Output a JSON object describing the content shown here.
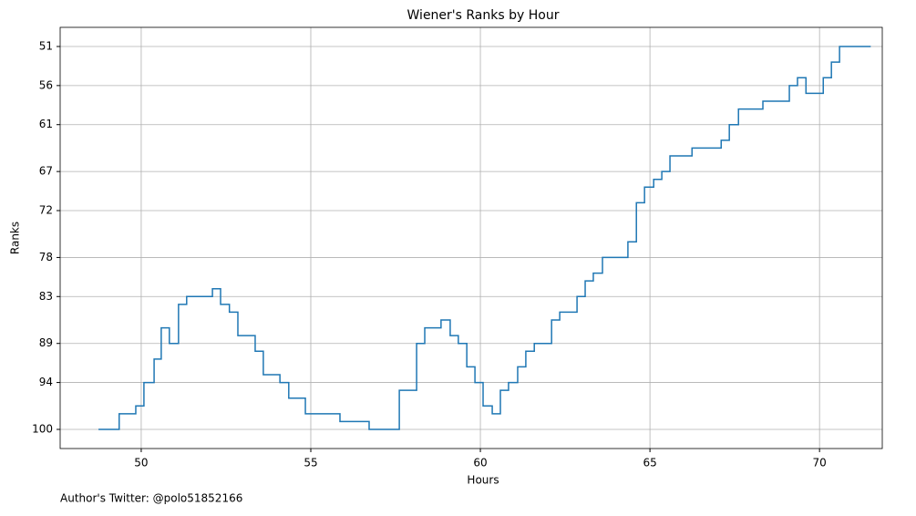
{
  "chart_data": {
    "type": "step",
    "title": "Wiener's Ranks by Hour",
    "xlabel": "Hours",
    "ylabel": "Ranks",
    "annotation": "Author's Twitter: @polo51852166",
    "x": [
      48.74,
      49.35,
      49.84,
      50.08,
      50.38,
      50.59,
      50.83,
      51.1,
      51.34,
      52.1,
      52.34,
      52.6,
      52.85,
      53.36,
      53.6,
      54.09,
      54.35,
      54.84,
      55.86,
      56.72,
      57.61,
      58.12,
      58.36,
      58.84,
      59.11,
      59.35,
      59.6,
      59.84,
      60.08,
      60.35,
      60.59,
      60.83,
      61.1,
      61.34,
      61.59,
      62.1,
      62.34,
      62.85,
      63.09,
      63.33,
      63.6,
      64.35,
      64.6,
      64.84,
      65.11,
      65.35,
      65.59,
      66.24,
      67.1,
      67.34,
      67.61,
      68.33,
      69.11,
      69.35,
      69.6,
      70.11,
      70.35,
      70.59,
      71.51
    ],
    "values": [
      100,
      98,
      97,
      94,
      91,
      87,
      89,
      84,
      83,
      82,
      84,
      85,
      88,
      90,
      93,
      94,
      96,
      98,
      99,
      100,
      95,
      89,
      87,
      86,
      88,
      89,
      92,
      94,
      97,
      98,
      95,
      94,
      92,
      90,
      89,
      86,
      85,
      83,
      81,
      80,
      78,
      76,
      71,
      69,
      68,
      67,
      65,
      64,
      63,
      61,
      59,
      58,
      56,
      55,
      57,
      55,
      53,
      51,
      51
    ],
    "color": "#1f77b4",
    "xlim": [
      47.61,
      71.85
    ],
    "ylim": [
      102.45,
      48.55
    ],
    "xticks": [
      50,
      55,
      60,
      65,
      70
    ],
    "yticks": [
      51,
      56,
      61,
      67,
      72,
      78,
      83,
      89,
      94,
      100
    ],
    "grid": true
  }
}
